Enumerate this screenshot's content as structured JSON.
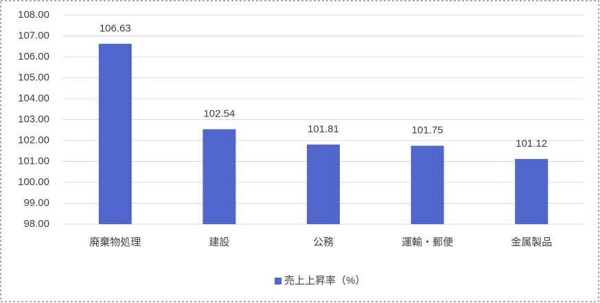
{
  "chart_data": {
    "type": "bar",
    "categories": [
      "廃棄物処理",
      "建設",
      "公務",
      "運輸・郵便",
      "金属製品"
    ],
    "series": [
      {
        "name": "売上上昇率（%）",
        "color": "#4f67cc",
        "values": [
          106.63,
          102.54,
          101.81,
          101.75,
          101.12
        ]
      }
    ],
    "ylim": [
      98,
      108
    ],
    "yticks": [
      {
        "value": 98,
        "label": "98.00"
      },
      {
        "value": 99,
        "label": "99.00"
      },
      {
        "value": 100,
        "label": "100.00"
      },
      {
        "value": 101,
        "label": "101.00"
      },
      {
        "value": 102,
        "label": "102.00"
      },
      {
        "value": 103,
        "label": "103.00"
      },
      {
        "value": 104,
        "label": "104.00"
      },
      {
        "value": 105,
        "label": "105.00"
      },
      {
        "value": 106,
        "label": "106.00"
      },
      {
        "value": 107,
        "label": "107.00"
      },
      {
        "value": 108,
        "label": "108.00"
      }
    ],
    "grid": true,
    "legend": "bottom"
  }
}
